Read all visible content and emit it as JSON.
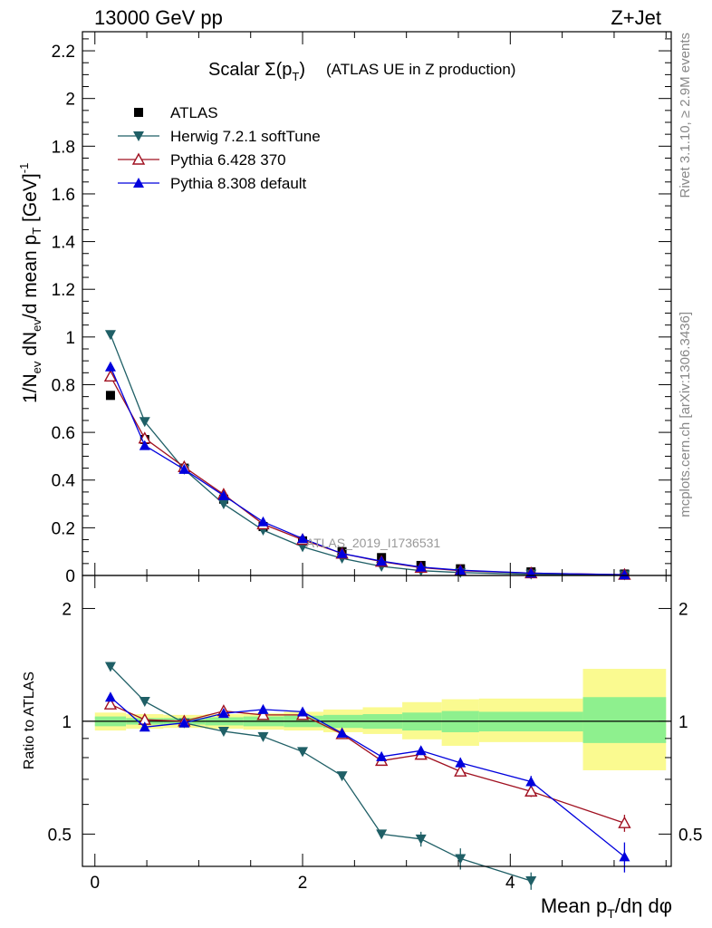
{
  "header": {
    "left": "13000 GeV pp",
    "right": "Z+Jet"
  },
  "side_labels": {
    "rivet": "Rivet 3.1.10, ≥ 2.9M events",
    "mcplots": "mcplots.cern.ch [arXiv:1306.3436]"
  },
  "top_panel": {
    "title_main": "Scalar Σ(p",
    "title_sub": "T",
    "title_close": ")",
    "title_rest": "(ATLAS UE in Z production)",
    "ylabel": "1/N_ev dN_ev/d mean p_T [GeV]^-1",
    "watermark": "ATLAS_2019_I1736531",
    "yticks": [
      "0",
      "0.2",
      "0.4",
      "0.6",
      "0.8",
      "1",
      "1.2",
      "1.4",
      "1.6",
      "1.8",
      "2",
      "2.2"
    ]
  },
  "bottom_panel": {
    "ylabel": "Ratio to ATLAS",
    "yticks": [
      "0.5",
      "1",
      "2"
    ],
    "xticks": [
      "0",
      "2",
      "4"
    ],
    "xlabel": "Mean p_T/dη dφ"
  },
  "legend": [
    {
      "id": "atlas",
      "label": "ATLAS"
    },
    {
      "id": "herwig",
      "label": "Herwig 7.2.1 softTune"
    },
    {
      "id": "py6",
      "label": "Pythia 6.428 370"
    },
    {
      "id": "py8",
      "label": "Pythia 8.308 default"
    }
  ],
  "colors": {
    "atlas": "#000000",
    "herwig": "#1f5f66",
    "py6": "#a01020",
    "py8": "#0000dd",
    "band_inner": "#8ef08e",
    "band_outer": "#fafa90"
  },
  "chart_data": [
    {
      "type": "scatter",
      "panel": "main",
      "title": "Scalar Σ(pT) (ATLAS UE in Z production)",
      "xlabel": "Mean pT/dη dφ",
      "ylabel": "1/Nev dNev/d mean pT [GeV]^-1",
      "xlim": [
        -0.12,
        5.55
      ],
      "ylim": [
        0,
        2.28
      ],
      "x": [
        0.15,
        0.48,
        0.86,
        1.24,
        1.62,
        2.0,
        2.38,
        2.76,
        3.14,
        3.52,
        4.2,
        5.1
      ],
      "series": [
        {
          "name": "ATLAS",
          "values": [
            0.755,
            0.57,
            0.45,
            0.32,
            0.205,
            0.145,
            0.1,
            0.075,
            0.042,
            0.028,
            0.015,
            0.006
          ]
        },
        {
          "name": "Herwig 7.2.1 softTune",
          "values": [
            1.01,
            0.645,
            0.445,
            0.3,
            0.19,
            0.12,
            0.072,
            0.038,
            0.02,
            0.012,
            0.005,
            0.002
          ]
        },
        {
          "name": "Pythia 6.428 370",
          "values": [
            0.835,
            0.575,
            0.455,
            0.34,
            0.215,
            0.15,
            0.092,
            0.058,
            0.033,
            0.02,
            0.01,
            0.0035
          ]
        },
        {
          "name": "Pythia 8.308 default",
          "values": [
            0.875,
            0.545,
            0.445,
            0.335,
            0.225,
            0.155,
            0.092,
            0.06,
            0.035,
            0.022,
            0.01,
            0.003
          ]
        }
      ]
    },
    {
      "type": "line",
      "panel": "ratio",
      "ylabel": "Ratio to ATLAS",
      "xlabel": "Mean pT/dη dφ",
      "scale": "log",
      "xlim": [
        -0.12,
        5.55
      ],
      "ylim": [
        0.41,
        2.45
      ],
      "reference": 1,
      "band_edges": [
        0.0,
        0.3,
        0.66,
        1.06,
        1.43,
        1.82,
        2.2,
        2.58,
        2.96,
        3.34,
        3.7,
        4.7,
        5.5
      ],
      "band_inner": [
        [
          0.97,
          1.03
        ],
        [
          0.98,
          1.02
        ],
        [
          0.98,
          1.02
        ],
        [
          0.975,
          1.025
        ],
        [
          0.97,
          1.03
        ],
        [
          0.965,
          1.035
        ],
        [
          0.96,
          1.04
        ],
        [
          0.955,
          1.045
        ],
        [
          0.945,
          1.055
        ],
        [
          0.935,
          1.065
        ],
        [
          0.94,
          1.06
        ],
        [
          0.875,
          1.16
        ]
      ],
      "band_outer": [
        [
          0.945,
          1.055
        ],
        [
          0.955,
          1.045
        ],
        [
          0.96,
          1.04
        ],
        [
          0.955,
          1.045
        ],
        [
          0.95,
          1.05
        ],
        [
          0.945,
          1.06
        ],
        [
          0.935,
          1.075
        ],
        [
          0.925,
          1.09
        ],
        [
          0.895,
          1.125
        ],
        [
          0.86,
          1.145
        ],
        [
          0.88,
          1.15
        ],
        [
          0.74,
          1.38
        ]
      ],
      "x": [
        0.15,
        0.48,
        0.86,
        1.24,
        1.62,
        2.0,
        2.38,
        2.76,
        3.14,
        3.52,
        4.2,
        5.1
      ],
      "series": [
        {
          "name": "Herwig 7.2.1 softTune",
          "values": [
            1.4,
            1.13,
            0.99,
            0.94,
            0.91,
            0.83,
            0.715,
            0.5,
            0.485,
            0.43,
            0.375,
            null
          ],
          "errors": [
            0.0,
            0.0,
            0.0,
            0.0,
            0.0,
            0.0,
            0.0,
            0.012,
            0.022,
            0.028,
            0.02,
            null
          ]
        },
        {
          "name": "Pythia 6.428 370",
          "values": [
            1.11,
            1.01,
            1.0,
            1.065,
            1.04,
            1.04,
            0.925,
            0.785,
            0.815,
            0.735,
            0.65,
            0.535
          ],
          "errors": [
            0.0,
            0.0,
            0.0,
            0.0,
            0.0,
            0.0,
            0.0,
            0.02,
            0.02,
            0.022,
            0.022,
            0.028
          ]
        },
        {
          "name": "Pythia 8.308 default",
          "values": [
            1.16,
            0.965,
            0.99,
            1.05,
            1.075,
            1.06,
            0.93,
            0.805,
            0.835,
            0.775,
            0.69,
            0.435
          ],
          "errors": [
            0.0,
            0.0,
            0.0,
            0.0,
            0.0,
            0.0,
            0.0,
            0.022,
            0.022,
            0.025,
            0.025,
            0.04
          ]
        }
      ]
    }
  ]
}
